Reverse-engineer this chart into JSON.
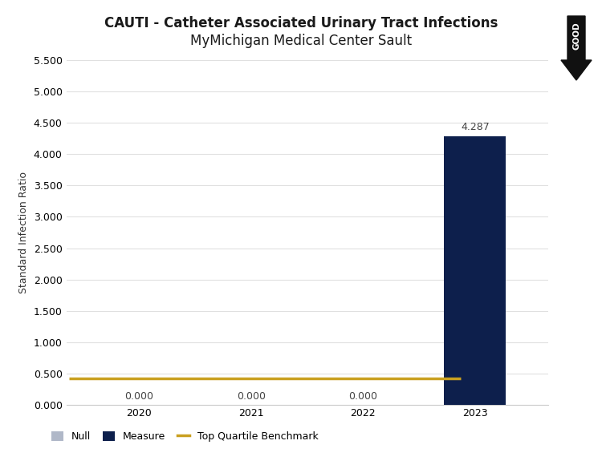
{
  "title_line1": "CAUTI - Catheter Associated Urinary Tract Infections",
  "title_line2": "MyMichigan Medical Center Sault",
  "years": [
    "2020",
    "2021",
    "2022",
    "2023"
  ],
  "values": [
    0.0,
    0.0,
    0.0,
    4.287
  ],
  "bar_color_null": "#b0b8c8",
  "bar_color_measure": "#0d1f4c",
  "benchmark_value": 0.42,
  "benchmark_color": "#c9a020",
  "ylabel": "Standard Infection Ratio",
  "ylim": [
    0,
    5.5
  ],
  "yticks": [
    0.0,
    0.5,
    1.0,
    1.5,
    2.0,
    2.5,
    3.0,
    3.5,
    4.0,
    4.5,
    5.0,
    5.5
  ],
  "background_color": "#ffffff",
  "grid_color": "#e0e0e0",
  "title_fontsize": 12,
  "label_fontsize": 9,
  "tick_fontsize": 9,
  "arrow_color": "#111111",
  "good_label": "GOOD"
}
